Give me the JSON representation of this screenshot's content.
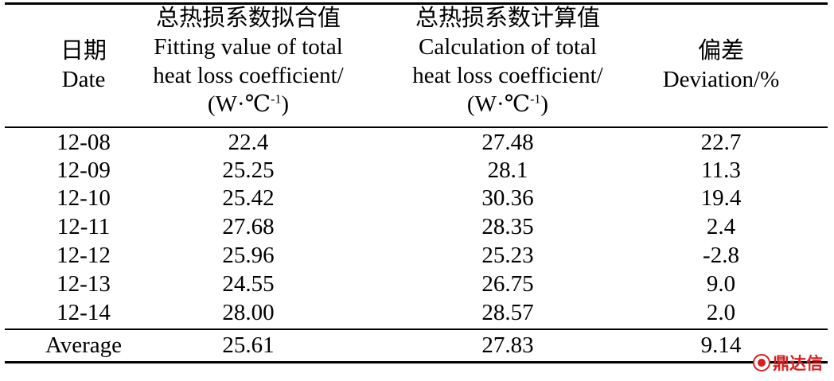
{
  "header": {
    "date_cn": "日期",
    "date_en": "Date",
    "fit_cn": "总热损系数拟合值",
    "fit_en1": "Fitting value of total",
    "fit_en2": "heat loss coefficient/",
    "calc_cn": "总热损系数计算值",
    "calc_en1": "Calculation of total",
    "calc_en2": "heat loss coefficient/",
    "unit_base": "(W·℃",
    "unit_sup": "-1",
    "unit_close": ")",
    "dev_cn": "偏差",
    "dev_en": "Deviation/%"
  },
  "rows": [
    {
      "date": "12-08",
      "fit": "22.4",
      "calc": "27.48",
      "dev": "22.7"
    },
    {
      "date": "12-09",
      "fit": "25.25",
      "calc": "28.1",
      "dev": "11.3"
    },
    {
      "date": "12-10",
      "fit": "25.42",
      "calc": "30.36",
      "dev": "19.4"
    },
    {
      "date": "12-11",
      "fit": "27.68",
      "calc": "28.35",
      "dev": "2.4"
    },
    {
      "date": "12-12",
      "fit": "25.96",
      "calc": "25.23",
      "dev": "-2.8"
    },
    {
      "date": "12-13",
      "fit": "24.55",
      "calc": "26.75",
      "dev": "9.0"
    },
    {
      "date": "12-14",
      "fit": "28.00",
      "calc": "28.57",
      "dev": "2.0"
    }
  ],
  "average": {
    "label": "Average",
    "fit": "25.61",
    "calc": "27.83",
    "dev": "9.14"
  },
  "watermark": {
    "text": "鼎达信",
    "icon": "seal-icon",
    "color": "#d81e1e"
  }
}
